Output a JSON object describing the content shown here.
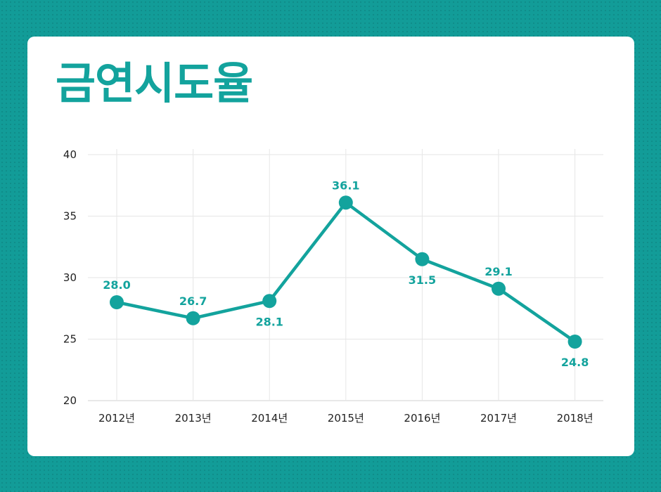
{
  "chart_data": {
    "type": "line",
    "title": "금연시도율",
    "categories": [
      "2012년",
      "2013년",
      "2014년",
      "2015년",
      "2016년",
      "2017년",
      "2018년"
    ],
    "values": [
      28.0,
      26.7,
      28.1,
      36.1,
      31.5,
      29.1,
      24.8
    ],
    "data_labels": [
      "28.0",
      "26.7",
      "28.1",
      "36.1",
      "31.5",
      "29.1",
      "24.8"
    ],
    "label_positions": [
      "above",
      "above",
      "below",
      "above",
      "below",
      "above",
      "below"
    ],
    "ylim": [
      20,
      40
    ],
    "yticks": [
      20,
      25,
      30,
      35,
      40
    ],
    "grid": true,
    "xlabel": "",
    "ylabel": ""
  },
  "colors": {
    "accent": "#13a39d",
    "background": "#129c98",
    "card": "#ffffff"
  }
}
